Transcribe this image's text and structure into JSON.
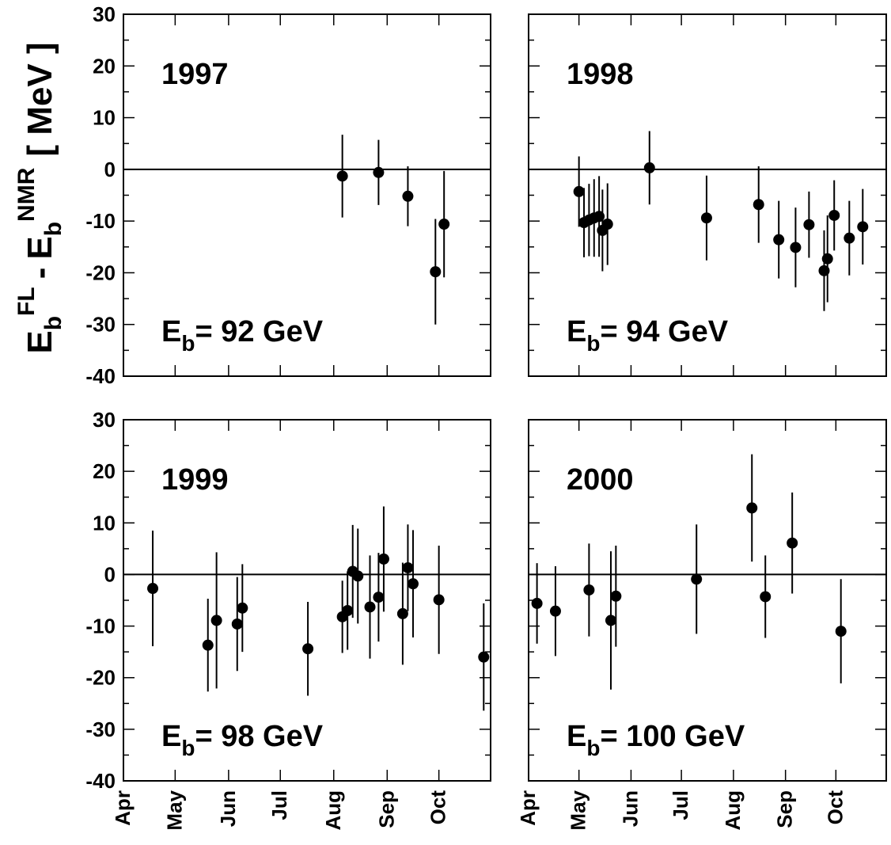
{
  "figure": {
    "ylabel": {
      "base1": "E",
      "sub1": "b",
      "sup1": "FL",
      "minus": "-",
      "base2": "E",
      "sub2": "b",
      "sup2": "NMR",
      "unit": "[ MeV ]"
    },
    "yticks": [
      "30",
      "20",
      "10",
      "0",
      "-10",
      "-20",
      "-30",
      "-40"
    ],
    "months": [
      "Apr",
      "May",
      "Jun",
      "Jul",
      "Aug",
      "Sep",
      "Oct"
    ]
  },
  "chart_data": [
    {
      "type": "scatter",
      "title": "1997",
      "energy_label": {
        "base": "E",
        "sub": "b",
        "rest": "= 92 GeV"
      },
      "ylim": [
        -40,
        30
      ],
      "x_axis": "date",
      "xlim": [
        "1997-04-01",
        "1997-10-31"
      ],
      "reference_line": 0,
      "points": [
        {
          "x": "1997-08-06",
          "y": -1.3,
          "err": 8.0
        },
        {
          "x": "1997-08-27",
          "y": -0.6,
          "err": 6.3
        },
        {
          "x": "1997-09-13",
          "y": -5.2,
          "err": 5.8
        },
        {
          "x": "1997-09-29",
          "y": -19.8,
          "err": 10.2
        },
        {
          "x": "1997-10-04",
          "y": -10.6,
          "err": 10.3
        }
      ]
    },
    {
      "type": "scatter",
      "title": "1998",
      "energy_label": {
        "base": "E",
        "sub": "b",
        "rest": "= 94 GeV"
      },
      "ylim": [
        -40,
        30
      ],
      "x_axis": "date",
      "xlim": [
        "1998-04-01",
        "1998-10-31"
      ],
      "reference_line": 0,
      "points": [
        {
          "x": "1998-05-01",
          "y": -4.3,
          "err": 6.8
        },
        {
          "x": "1998-05-04",
          "y": -10.3,
          "err": 6.7
        },
        {
          "x": "1998-05-07",
          "y": -9.8,
          "err": 7.0
        },
        {
          "x": "1998-05-10",
          "y": -9.4,
          "err": 7.5
        },
        {
          "x": "1998-05-13",
          "y": -9.1,
          "err": 7.8
        },
        {
          "x": "1998-05-15",
          "y": -11.8,
          "err": 7.9
        },
        {
          "x": "1998-05-18",
          "y": -10.6,
          "err": 7.9
        },
        {
          "x": "1998-06-12",
          "y": 0.3,
          "err": 7.1
        },
        {
          "x": "1998-07-16",
          "y": -9.4,
          "err": 8.2
        },
        {
          "x": "1998-08-16",
          "y": -6.8,
          "err": 7.4
        },
        {
          "x": "1998-08-28",
          "y": -13.6,
          "err": 7.5
        },
        {
          "x": "1998-09-07",
          "y": -15.1,
          "err": 7.7
        },
        {
          "x": "1998-09-15",
          "y": -10.7,
          "err": 6.4
        },
        {
          "x": "1998-09-24",
          "y": -19.6,
          "err": 7.8
        },
        {
          "x": "1998-09-26",
          "y": -17.3,
          "err": 8.4
        },
        {
          "x": "1998-09-30",
          "y": -8.9,
          "err": 6.8
        },
        {
          "x": "1998-10-09",
          "y": -13.3,
          "err": 7.2
        },
        {
          "x": "1998-10-17",
          "y": -11.1,
          "err": 7.3
        }
      ]
    },
    {
      "type": "scatter",
      "title": "1999",
      "energy_label": {
        "base": "E",
        "sub": "b",
        "rest": "= 98 GeV"
      },
      "ylim": [
        -40,
        30
      ],
      "x_axis": "date",
      "xlim": [
        "1999-04-01",
        "1999-10-31"
      ],
      "reference_line": 0,
      "points": [
        {
          "x": "1999-04-18",
          "y": -2.7,
          "err": 11.2
        },
        {
          "x": "1999-05-20",
          "y": -13.7,
          "err": 9.0
        },
        {
          "x": "1999-05-25",
          "y": -8.9,
          "err": 13.2
        },
        {
          "x": "1999-06-06",
          "y": -9.6,
          "err": 9.1
        },
        {
          "x": "1999-06-09",
          "y": -6.5,
          "err": 8.5
        },
        {
          "x": "1999-07-17",
          "y": -14.4,
          "err": 9.1
        },
        {
          "x": "1999-08-06",
          "y": -8.2,
          "err": 7.0
        },
        {
          "x": "1999-08-09",
          "y": -7.0,
          "err": 7.6
        },
        {
          "x": "1999-08-12",
          "y": 0.6,
          "err": 9.0
        },
        {
          "x": "1999-08-15",
          "y": -0.3,
          "err": 9.2
        },
        {
          "x": "1999-08-22",
          "y": -6.3,
          "err": 10.0
        },
        {
          "x": "1999-08-27",
          "y": -4.4,
          "err": 8.6
        },
        {
          "x": "1999-08-30",
          "y": 3.0,
          "err": 10.2
        },
        {
          "x": "1999-09-10",
          "y": -7.6,
          "err": 9.9
        },
        {
          "x": "1999-09-13",
          "y": 1.3,
          "err": 8.4
        },
        {
          "x": "1999-09-16",
          "y": -1.8,
          "err": 10.4
        },
        {
          "x": "1999-10-01",
          "y": -4.9,
          "err": 10.5
        },
        {
          "x": "1999-10-27",
          "y": -16.0,
          "err": 10.4
        }
      ]
    },
    {
      "type": "scatter",
      "title": "2000",
      "energy_label": {
        "base": "E",
        "sub": "b",
        "rest": "= 100 GeV"
      },
      "ylim": [
        -40,
        30
      ],
      "x_axis": "date",
      "xlim": [
        "2000-04-01",
        "2000-10-31"
      ],
      "reference_line": 0,
      "points": [
        {
          "x": "2000-04-06",
          "y": -5.6,
          "err": 7.8
        },
        {
          "x": "2000-04-17",
          "y": -7.1,
          "err": 8.7
        },
        {
          "x": "2000-05-07",
          "y": -3.0,
          "err": 9.0
        },
        {
          "x": "2000-05-20",
          "y": -8.9,
          "err": 13.4
        },
        {
          "x": "2000-05-23",
          "y": -4.2,
          "err": 9.8
        },
        {
          "x": "2000-07-10",
          "y": -0.9,
          "err": 10.6
        },
        {
          "x": "2000-08-12",
          "y": 12.9,
          "err": 10.4
        },
        {
          "x": "2000-08-20",
          "y": -4.3,
          "err": 8.0
        },
        {
          "x": "2000-09-05",
          "y": 6.1,
          "err": 9.8
        },
        {
          "x": "2000-10-04",
          "y": -11.0,
          "err": 10.1
        }
      ]
    }
  ]
}
